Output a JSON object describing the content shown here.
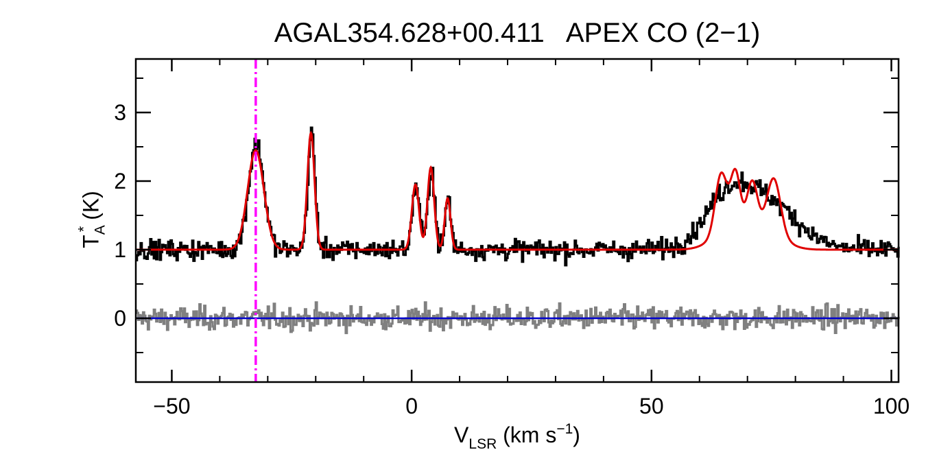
{
  "chart_data": {
    "type": "line",
    "title": "AGAL354.628+00.411   APEX CO (2−1)",
    "xlabel": {
      "main": "V",
      "sub": "LSR",
      "text": " (km s",
      "sup": "−1",
      "close": ")"
    },
    "ylabel": {
      "main": "T",
      "sub": "A",
      "sup": "*",
      "text": " (K)"
    },
    "xlim": [
      -57.5,
      101.5
    ],
    "ylim": [
      -0.93,
      3.78
    ],
    "x_ticks": [
      -50,
      0,
      50,
      100
    ],
    "x_tick_labels": [
      "−50",
      "0",
      "50",
      "100"
    ],
    "x_minor_step": 10,
    "y_ticks": [
      0,
      1,
      2,
      3
    ],
    "y_tick_labels": [
      "0",
      "1",
      "2",
      "3"
    ],
    "y_minor_step": 0.5,
    "reference_line": {
      "x": -32.5,
      "color": "#ff00ff",
      "style": "dash-dot"
    },
    "zero_line": {
      "y": 0,
      "color": "#0000cc"
    },
    "series": [
      {
        "role": "observed",
        "color": "#000000",
        "style": "histogram",
        "baseline": 1.0,
        "noise": 0.12,
        "components": [
          {
            "center": -32.5,
            "amp": 1.55,
            "sigma": 1.6
          },
          {
            "center": -21.0,
            "amp": 1.7,
            "sigma": 0.75
          },
          {
            "center": 0.8,
            "amp": 0.95,
            "sigma": 0.75
          },
          {
            "center": 4.0,
            "amp": 1.2,
            "sigma": 0.7
          },
          {
            "center": 7.5,
            "amp": 0.75,
            "sigma": 0.6
          },
          {
            "center": 66.0,
            "amp": 0.75,
            "sigma": 5.0
          },
          {
            "center": 75.0,
            "amp": 0.6,
            "sigma": 6.0
          }
        ]
      },
      {
        "role": "fit",
        "color": "#e00000",
        "style": "line",
        "baseline": 1.0,
        "components": [
          {
            "center": -32.5,
            "amp": 1.45,
            "sigma": 1.7
          },
          {
            "center": -21.0,
            "amp": 1.7,
            "sigma": 0.75
          },
          {
            "center": 0.8,
            "amp": 0.95,
            "sigma": 0.75
          },
          {
            "center": 4.0,
            "amp": 1.2,
            "sigma": 0.7
          },
          {
            "center": 7.5,
            "amp": 0.75,
            "sigma": 0.6
          },
          {
            "center": 64.5,
            "amp": 0.85,
            "sigma": 1.2
          },
          {
            "center": 67.5,
            "amp": 0.8,
            "sigma": 1.0
          },
          {
            "center": 71.0,
            "amp": 0.7,
            "sigma": 1.1
          },
          {
            "center": 75.5,
            "amp": 0.8,
            "sigma": 1.4
          },
          {
            "center": 66.5,
            "amp": 0.3,
            "sigma": 3.5
          },
          {
            "center": 74.0,
            "amp": 0.25,
            "sigma": 3.5
          }
        ]
      },
      {
        "role": "residual",
        "color": "#808080",
        "style": "histogram",
        "baseline": 0.0,
        "noise": 0.14,
        "components": []
      }
    ]
  }
}
